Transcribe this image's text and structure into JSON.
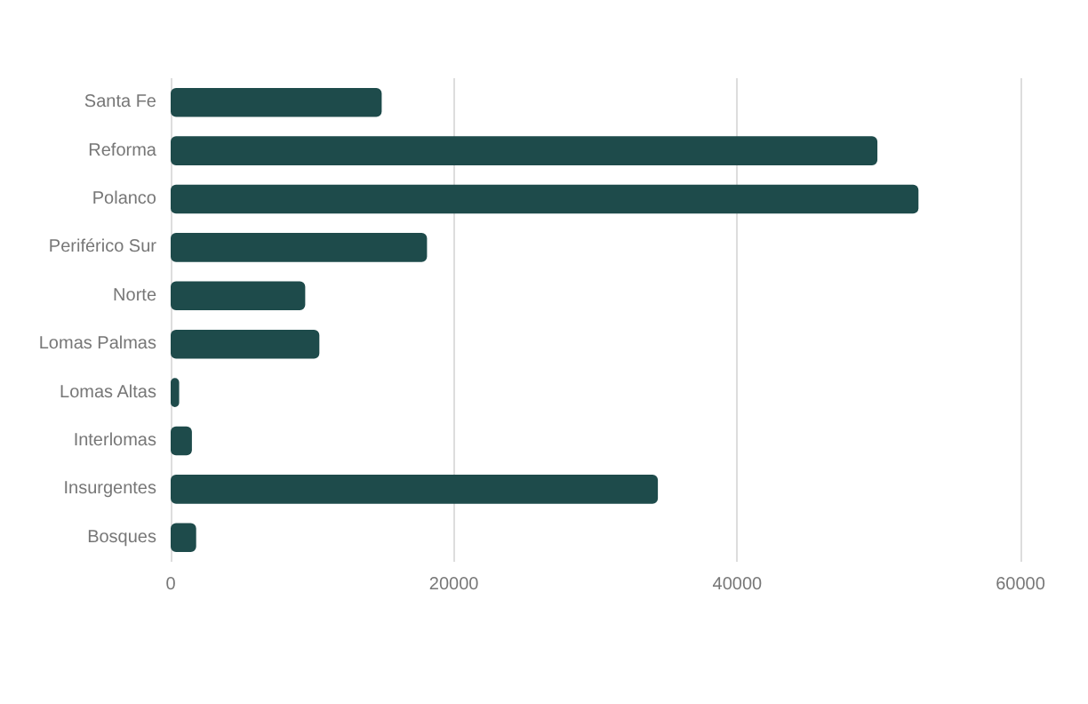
{
  "chart_data": {
    "type": "bar",
    "orientation": "horizontal",
    "categories": [
      "Santa Fe",
      "Reforma",
      "Polanco",
      "Periférico Sur",
      "Norte",
      "Lomas Palmas",
      "Lomas Altas",
      "Interlomas",
      "Insurgentes",
      "Bosques"
    ],
    "values": [
      14900,
      49900,
      52800,
      18100,
      9500,
      10500,
      600,
      1500,
      34400,
      1800
    ],
    "color": "#1e4b4b",
    "xlim": [
      0,
      60000
    ],
    "xticks": [
      0,
      20000,
      40000,
      60000
    ],
    "grid": "x"
  }
}
